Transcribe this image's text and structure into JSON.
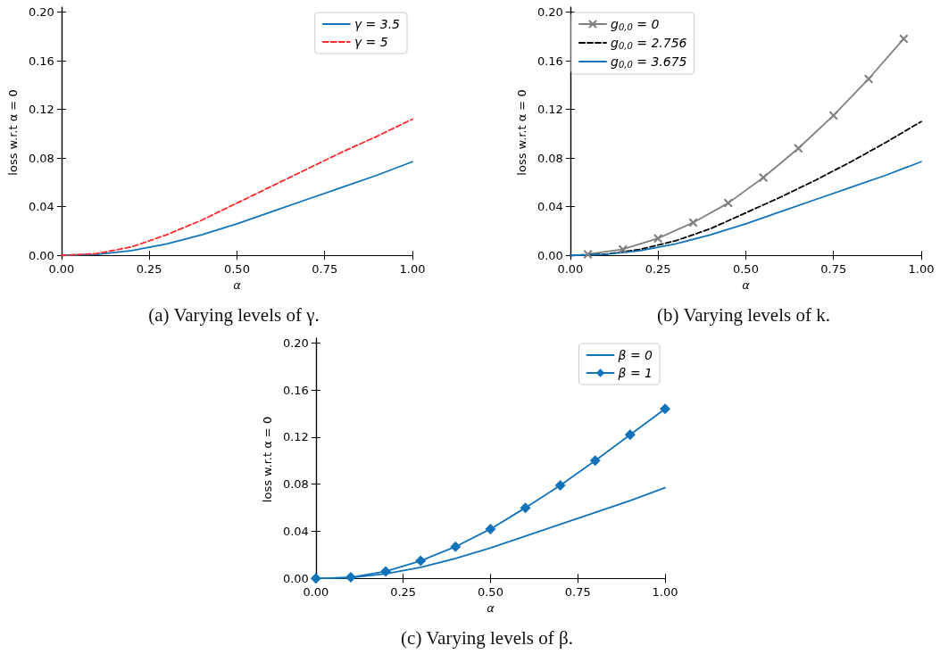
{
  "chart_data": [
    {
      "type": "line",
      "xlabel": "α",
      "ylabel": "loss w.r.t α = 0",
      "annotations": [
        "(a) Varying levels of γ."
      ],
      "xlim": [
        0,
        1
      ],
      "ylim": [
        -0.002,
        0.204
      ],
      "xticks": [
        {
          "value": 0,
          "label": "0.00"
        },
        {
          "value": 0.25,
          "label": "0.25"
        },
        {
          "value": 0.5,
          "label": "0.50"
        },
        {
          "value": 0.75,
          "label": "0.75"
        },
        {
          "value": 1,
          "label": "1.00"
        }
      ],
      "yticks": [
        {
          "value": 0,
          "label": "0.00"
        },
        {
          "value": 0.04,
          "label": "0.04"
        },
        {
          "value": 0.08,
          "label": "0.08"
        },
        {
          "value": 0.12,
          "label": "0.12"
        },
        {
          "value": 0.16,
          "label": "0.16"
        },
        {
          "value": 0.2,
          "label": "0.20"
        }
      ],
      "grid": false,
      "legend": "top right",
      "series": [
        {
          "name": "γ = 3.5",
          "color": "#1173b9",
          "line_style": "solid",
          "marker": "none",
          "x": [
            0,
            0.1,
            0.2,
            0.3,
            0.4,
            0.5,
            0.6,
            0.7,
            0.8,
            0.9,
            1.0
          ],
          "values": [
            0,
            0.0008,
            0.004,
            0.0095,
            0.017,
            0.026,
            0.036,
            0.046,
            0.056,
            0.066,
            0.077
          ]
        },
        {
          "name": "γ = 5",
          "color": "#ff2a2a",
          "line_style": "dashed",
          "marker": "none",
          "x": [
            0,
            0.1,
            0.2,
            0.3,
            0.4,
            0.5,
            0.6,
            0.7,
            0.8,
            0.9,
            1.0
          ],
          "values": [
            0,
            0.0015,
            0.007,
            0.017,
            0.029,
            0.043,
            0.057,
            0.071,
            0.085,
            0.098,
            0.112
          ]
        }
      ]
    },
    {
      "type": "line",
      "xlabel": "α",
      "ylabel": "loss w.r.t α = 0",
      "annotations": [
        "(b) Varying levels of k."
      ],
      "xlim": [
        0,
        1
      ],
      "ylim": [
        -0.002,
        0.204
      ],
      "xticks": [
        {
          "value": 0,
          "label": "0.00"
        },
        {
          "value": 0.25,
          "label": "0.25"
        },
        {
          "value": 0.5,
          "label": "0.50"
        },
        {
          "value": 0.75,
          "label": "0.75"
        },
        {
          "value": 1,
          "label": "1.00"
        }
      ],
      "yticks": [
        {
          "value": 0,
          "label": "0.00"
        },
        {
          "value": 0.04,
          "label": "0.04"
        },
        {
          "value": 0.08,
          "label": "0.08"
        },
        {
          "value": 0.12,
          "label": "0.12"
        },
        {
          "value": 0.16,
          "label": "0.16"
        },
        {
          "value": 0.2,
          "label": "0.20"
        }
      ],
      "grid": false,
      "legend": "top left",
      "series": [
        {
          "name": "g$_{0,0}$ = 0",
          "color": "#808080",
          "line_style": "solid",
          "marker": "cross",
          "x": [
            0.05,
            0.15,
            0.25,
            0.35,
            0.45,
            0.55,
            0.65,
            0.75,
            0.85,
            0.95
          ],
          "values": [
            0.001,
            0.005,
            0.014,
            0.027,
            0.043,
            0.064,
            0.088,
            0.115,
            0.145,
            0.178
          ]
        },
        {
          "name": "g$_{0,0}$ = 2.756",
          "color": "#000000",
          "line_style": "dashed",
          "marker": "none",
          "x": [
            0,
            0.1,
            0.2,
            0.3,
            0.4,
            0.5,
            0.6,
            0.7,
            0.8,
            0.9,
            1.0
          ],
          "values": [
            0,
            0.001,
            0.005,
            0.012,
            0.022,
            0.035,
            0.048,
            0.062,
            0.077,
            0.093,
            0.11
          ]
        },
        {
          "name": "g$_{0,0}$ = 3.675",
          "color": "#1173b9",
          "line_style": "solid",
          "marker": "none",
          "x": [
            0,
            0.1,
            0.2,
            0.3,
            0.4,
            0.5,
            0.6,
            0.7,
            0.8,
            0.9,
            1.0
          ],
          "values": [
            0,
            0.0008,
            0.004,
            0.0095,
            0.017,
            0.026,
            0.036,
            0.046,
            0.056,
            0.066,
            0.077
          ]
        }
      ]
    },
    {
      "type": "line",
      "xlabel": "α",
      "ylabel": "loss w.r.t α = 0",
      "annotations": [
        "(c) Varying levels of β."
      ],
      "xlim": [
        0,
        1
      ],
      "ylim": [
        -0.002,
        0.204
      ],
      "xticks": [
        {
          "value": 0,
          "label": "0.00"
        },
        {
          "value": 0.25,
          "label": "0.25"
        },
        {
          "value": 0.5,
          "label": "0.50"
        },
        {
          "value": 0.75,
          "label": "0.75"
        },
        {
          "value": 1,
          "label": "1.00"
        }
      ],
      "yticks": [
        {
          "value": 0,
          "label": "0.00"
        },
        {
          "value": 0.04,
          "label": "0.04"
        },
        {
          "value": 0.08,
          "label": "0.08"
        },
        {
          "value": 0.12,
          "label": "0.12"
        },
        {
          "value": 0.16,
          "label": "0.16"
        },
        {
          "value": 0.2,
          "label": "0.20"
        }
      ],
      "grid": false,
      "legend": "top right",
      "series": [
        {
          "name": "β = 0",
          "color": "#1173b9",
          "line_style": "solid",
          "marker": "none",
          "x": [
            0,
            0.1,
            0.2,
            0.3,
            0.4,
            0.5,
            0.6,
            0.7,
            0.8,
            0.9,
            1.0
          ],
          "values": [
            0,
            0.0008,
            0.004,
            0.0095,
            0.017,
            0.026,
            0.036,
            0.046,
            0.056,
            0.066,
            0.077
          ]
        },
        {
          "name": "β = 1",
          "color": "#1173b9",
          "line_style": "solid",
          "marker": "diamond",
          "x": [
            0,
            0.1,
            0.2,
            0.3,
            0.4,
            0.5,
            0.6,
            0.7,
            0.8,
            0.9,
            1.0
          ],
          "values": [
            0,
            0.001,
            0.006,
            0.015,
            0.027,
            0.042,
            0.06,
            0.079,
            0.1,
            0.122,
            0.144
          ]
        }
      ]
    }
  ]
}
